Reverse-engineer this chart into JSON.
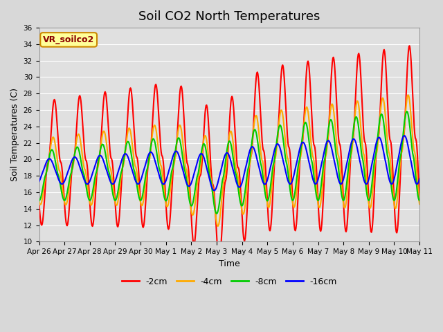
{
  "title": "Soil CO2 North Temperatures",
  "xlabel": "Time",
  "ylabel": "Soil Temperatures (C)",
  "ylim": [
    10,
    36
  ],
  "yticks": [
    10,
    12,
    14,
    16,
    18,
    20,
    22,
    24,
    26,
    28,
    30,
    32,
    34,
    36
  ],
  "background_color": "#d8d8d8",
  "plot_bg_color": "#e0e0e0",
  "grid_color": "#ffffff",
  "annotation_text": "VR_soilco2",
  "annotation_bg": "#ffff99",
  "annotation_border": "#cc8800",
  "legend_entries": [
    "-2cm",
    "-4cm",
    "-8cm",
    "-16cm"
  ],
  "legend_colors": [
    "#ff0000",
    "#ffaa00",
    "#00cc00",
    "#0000ff"
  ],
  "line_width": 1.5,
  "xtick_labels": [
    "Apr 26",
    "Apr 27",
    "Apr 28",
    "Apr 29",
    "Apr 30",
    "May 1",
    "May 2",
    "May 3",
    "May 4",
    "May 5",
    "May 6",
    "May 7",
    "May 8",
    "May 9",
    "May 10",
    "May 11"
  ],
  "days": 15,
  "title_fontsize": 13
}
